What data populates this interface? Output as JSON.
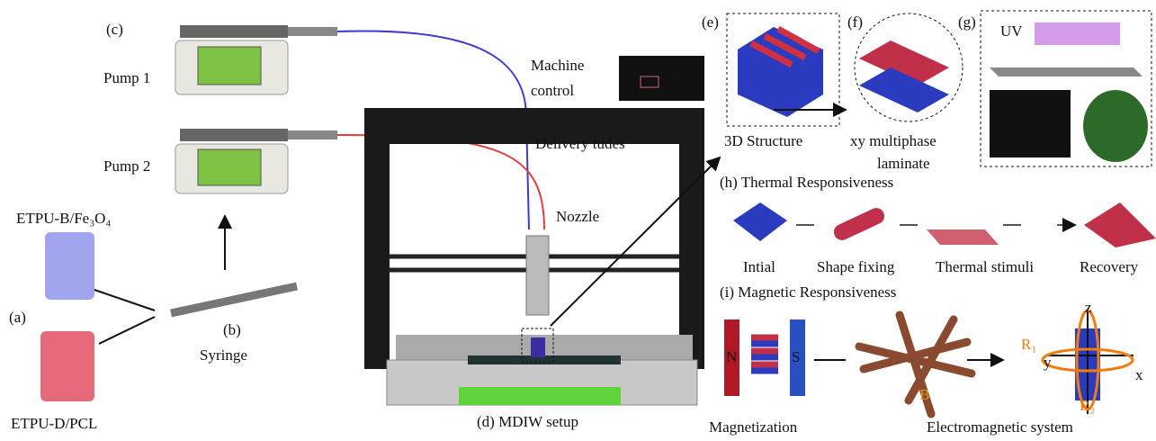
{
  "panel_a": {
    "tag": "(a)",
    "material_top": "ETPU-B/Fe₃O₄",
    "material_bottom": "ETPU-D/PCL"
  },
  "panel_b": {
    "tag": "(b)",
    "label": "Syringe"
  },
  "panel_c": {
    "tag": "(c)",
    "pump_1": "Pump 1",
    "pump_2": "Pump 2"
  },
  "panel_d": {
    "caption": "(d)  MDIW setup",
    "machine_control": [
      "Machine",
      "control"
    ],
    "delivery": "Delivery tudes",
    "nozzle": "Nozzle"
  },
  "panel_e": {
    "tag": "(e)",
    "label": "3D Structure"
  },
  "panel_f": {
    "tag": "(f)",
    "label": [
      "xy multiphase",
      "laminate"
    ]
  },
  "panel_g": {
    "tag": "(g)",
    "uv": "UV"
  },
  "panel_h": {
    "title": "(h) Thermal Responsiveness",
    "steps": [
      "Intial",
      "Shape fixing",
      "Thermal stimuli",
      "Recovery"
    ]
  },
  "panel_i": {
    "title": "(i) Magnetic Responsiveness",
    "north": "N",
    "south": "S",
    "magnetization": "Magnetization",
    "field": "B",
    "system": "Electromagnetic system",
    "axis_z": "z",
    "axis_y": "y",
    "axis_x": "x",
    "r1": "R₁",
    "r2": "R₂"
  }
}
